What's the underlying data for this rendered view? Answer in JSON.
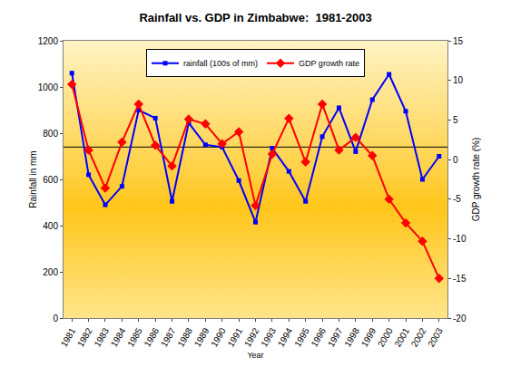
{
  "chart_data": {
    "type": "line",
    "title": "Rainfall vs. GDP in Zimbabwe:  1981-2003",
    "x_label": "Year",
    "y_label": "Rainfall in mm",
    "y2_label": "GDP growth rate (%)",
    "categories": [
      "1981",
      "1982",
      "1983",
      "1984",
      "1985",
      "1986",
      "1987",
      "1988",
      "1989",
      "1990",
      "1991",
      "1992",
      "1993",
      "1994",
      "1995",
      "1996",
      "1997",
      "1998",
      "1999",
      "2000",
      "2001",
      "2002",
      "2003"
    ],
    "series": [
      {
        "name": "rainfall (100s of mm)",
        "color": "#0000ff",
        "marker": "square",
        "line_style": "solid",
        "axis": "y",
        "values": [
          1060,
          620,
          490,
          570,
          900,
          865,
          505,
          845,
          750,
          740,
          595,
          415,
          735,
          635,
          505,
          785,
          910,
          720,
          945,
          1055,
          895,
          600,
          700
        ]
      },
      {
        "name": "GDP growth rate",
        "color": "#ff0000",
        "marker": "diamond",
        "line_style": "solid",
        "axis": "y2",
        "values": [
          9.5,
          1.2,
          -3.6,
          2.2,
          7.0,
          1.8,
          -0.8,
          5.1,
          4.5,
          2.0,
          3.5,
          -5.8,
          0.7,
          5.2,
          -0.3,
          7.0,
          1.2,
          2.8,
          0.5,
          -5.0,
          -8.0,
          -10.3,
          -15.0
        ]
      }
    ],
    "hline": 740,
    "ylim": [
      0,
      1200
    ],
    "yticks": [
      0,
      200,
      400,
      600,
      800,
      1000,
      1200
    ],
    "y2lim": [
      -20,
      15
    ],
    "y2ticks": [
      -20,
      -15,
      -10,
      -5,
      0,
      5,
      10,
      15
    ],
    "grid": false,
    "legend": "top"
  }
}
